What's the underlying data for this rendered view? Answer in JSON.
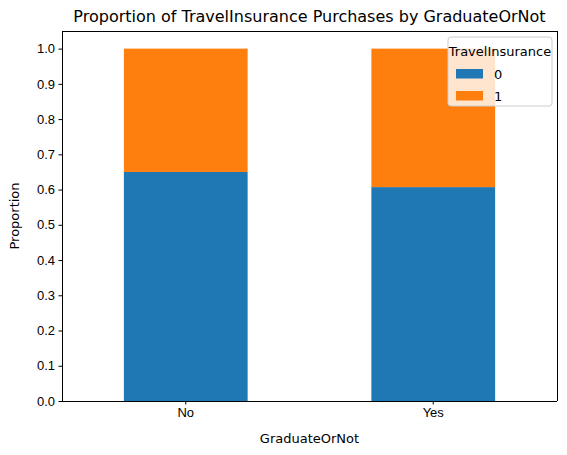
{
  "chart_data": {
    "type": "bar",
    "title": "Proportion of TravelInsurance Purchases by GraduateOrNot",
    "x_label": "GraduateOrNot",
    "y_label": "Proportion",
    "categories": [
      "No",
      "Yes"
    ],
    "series": [
      {
        "name": "0",
        "color": "#1f77b4",
        "values": [
          0.65,
          0.607
        ]
      },
      {
        "name": "1",
        "color": "#ff7f0e",
        "values": [
          0.35,
          0.393
        ]
      }
    ],
    "stacked": true,
    "legend": "upper right",
    "legend_title": "TravelInsurance",
    "ylim": [
      0,
      1.05
    ],
    "yticks": [
      {
        "value": 0,
        "label": "0.0"
      },
      0.1,
      0.2,
      0.3,
      0.4,
      0.5,
      0.6,
      0.7,
      0.8,
      0.9,
      {
        "value": 1,
        "label": "1.0"
      }
    ],
    "grid": false
  }
}
